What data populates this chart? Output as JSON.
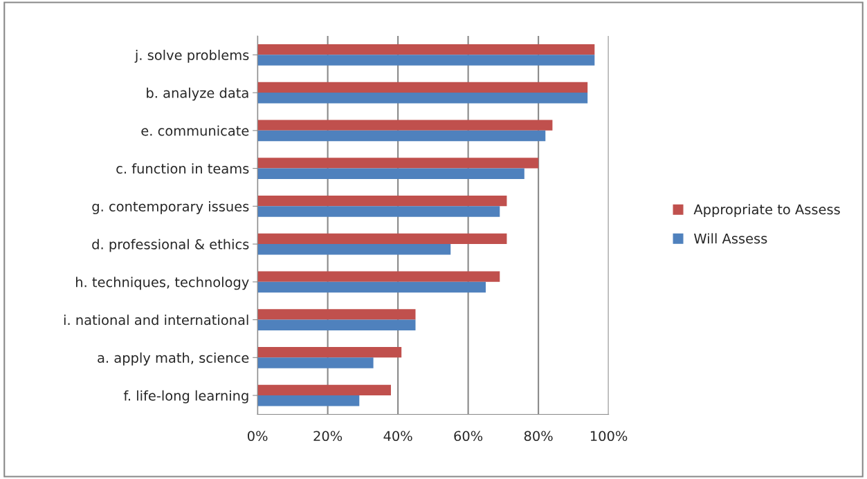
{
  "chart_data": {
    "type": "bar",
    "orientation": "horizontal",
    "categories": [
      "j. solve problems",
      "b. analyze data",
      "e. communicate",
      "c. function in teams",
      "g. contemporary issues",
      "d. professional & ethics",
      "h. techniques, technology",
      "i. national and international",
      "a. apply math, science",
      "f. life-long learning"
    ],
    "series": [
      {
        "name": "Appropriate to Assess",
        "color": "#c0504d",
        "values": [
          96,
          94,
          84,
          80,
          71,
          71,
          69,
          45,
          41,
          38
        ]
      },
      {
        "name": "Will Assess",
        "color": "#4f81bd",
        "values": [
          96,
          94,
          82,
          76,
          69,
          55,
          65,
          45,
          33,
          29
        ]
      }
    ],
    "xlim": [
      0,
      100
    ],
    "xticks": [
      {
        "value": 0,
        "label": "0%"
      },
      {
        "value": 20,
        "label": "20%"
      },
      {
        "value": 40,
        "label": "40%"
      },
      {
        "value": 60,
        "label": "60%"
      },
      {
        "value": 80,
        "label": "80%"
      },
      {
        "value": 100,
        "label": "100%"
      }
    ],
    "grid": "x",
    "legend": "right"
  }
}
